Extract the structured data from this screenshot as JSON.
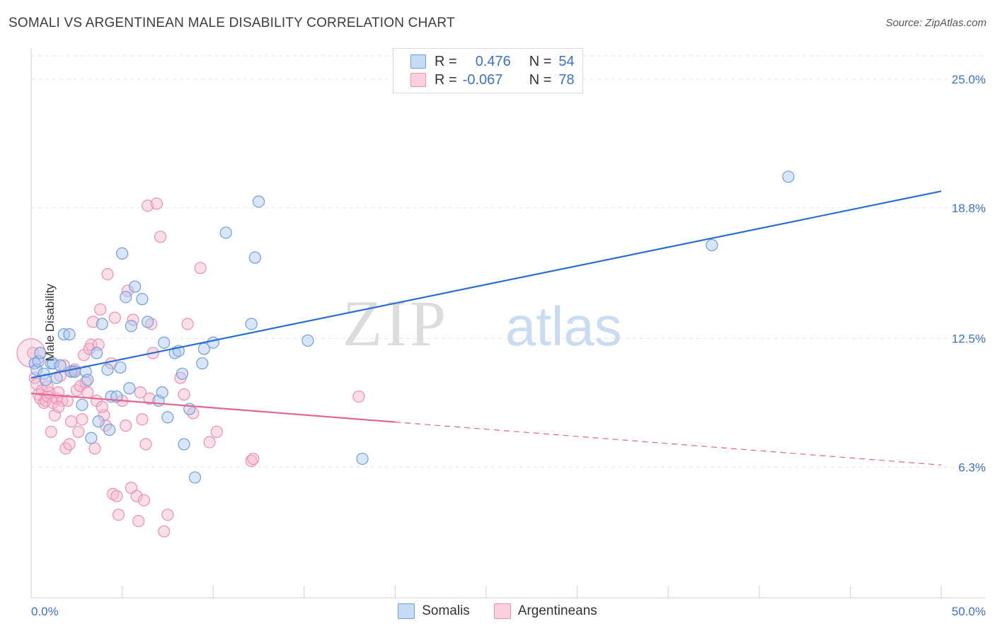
{
  "header": {
    "title": "SOMALI VS ARGENTINEAN MALE DISABILITY CORRELATION CHART",
    "source": "Source: ZipAtlas.com"
  },
  "legend": {
    "somalis": {
      "r_label": "R =",
      "r_value": "0.476",
      "n_label": "N =",
      "n_value": "54"
    },
    "argentineans": {
      "r_label": "R =",
      "r_value": "-0.067",
      "n_label": "N =",
      "n_value": "78"
    }
  },
  "watermark": {
    "part1": "ZIP",
    "part2": "atlas"
  },
  "colors": {
    "somali_fill": "#aac8f0",
    "somali_stroke": "#6f9ee0",
    "somali_line": "#2a6fd0",
    "arg_fill": "#f7b8cb",
    "arg_stroke": "#ee8fae",
    "arg_line": "#e2668f",
    "tick_label": "#3a72cc",
    "grid": "#e6e6e6"
  },
  "chart_data": {
    "type": "scatter",
    "title": "SOMALI VS ARGENTINEAN MALE DISABILITY CORRELATION CHART",
    "xlabel": "",
    "ylabel": "Male Disability",
    "xlim": [
      0,
      50
    ],
    "ylim": [
      0,
      26.5
    ],
    "x_tick_labels": [
      "0.0%",
      "50.0%"
    ],
    "y_ticks": [
      6.3,
      12.5,
      18.8,
      25.0
    ],
    "y_tick_labels": [
      "6.3%",
      "12.5%",
      "18.8%",
      "25.0%"
    ],
    "grid": true,
    "legend_position": "top-center",
    "series": [
      {
        "name": "Somalis",
        "r": 0.476,
        "n": 54,
        "trend": {
          "x": [
            0,
            50
          ],
          "y": [
            10.6,
            19.6
          ],
          "dashed_from": null
        },
        "points": [
          [
            0.2,
            11.3
          ],
          [
            0.3,
            11.0
          ],
          [
            0.4,
            11.4
          ],
          [
            0.5,
            11.8
          ],
          [
            0.7,
            10.8
          ],
          [
            0.8,
            10.5
          ],
          [
            1.1,
            11.3
          ],
          [
            1.2,
            11.3
          ],
          [
            1.4,
            10.6
          ],
          [
            1.6,
            11.2
          ],
          [
            1.8,
            12.7
          ],
          [
            2.1,
            12.7
          ],
          [
            2.2,
            10.9
          ],
          [
            2.4,
            10.9
          ],
          [
            2.8,
            9.3
          ],
          [
            3.0,
            10.9
          ],
          [
            3.1,
            10.5
          ],
          [
            3.3,
            7.7
          ],
          [
            3.6,
            11.8
          ],
          [
            3.7,
            8.5
          ],
          [
            3.9,
            13.2
          ],
          [
            4.2,
            11.0
          ],
          [
            4.3,
            8.1
          ],
          [
            4.4,
            9.7
          ],
          [
            4.7,
            9.7
          ],
          [
            4.9,
            11.1
          ],
          [
            5.0,
            16.6
          ],
          [
            5.2,
            14.5
          ],
          [
            5.4,
            10.1
          ],
          [
            5.5,
            13.1
          ],
          [
            5.7,
            15.0
          ],
          [
            6.1,
            14.4
          ],
          [
            6.4,
            13.3
          ],
          [
            7.0,
            9.5
          ],
          [
            7.2,
            9.9
          ],
          [
            7.3,
            12.3
          ],
          [
            7.5,
            8.7
          ],
          [
            7.9,
            11.8
          ],
          [
            8.1,
            11.9
          ],
          [
            8.3,
            10.8
          ],
          [
            8.4,
            7.4
          ],
          [
            8.7,
            9.1
          ],
          [
            9.0,
            5.8
          ],
          [
            9.4,
            11.3
          ],
          [
            9.5,
            12.0
          ],
          [
            10.0,
            12.3
          ],
          [
            10.7,
            17.6
          ],
          [
            12.1,
            13.2
          ],
          [
            12.3,
            16.4
          ],
          [
            12.5,
            19.1
          ],
          [
            15.2,
            12.4
          ],
          [
            18.2,
            6.7
          ],
          [
            37.4,
            17.0
          ],
          [
            41.6,
            20.3
          ]
        ]
      },
      {
        "name": "Argentineans",
        "r": -0.067,
        "n": 78,
        "trend": {
          "x": [
            0,
            50
          ],
          "y": [
            9.85,
            6.4
          ],
          "dashed_from": 20
        },
        "points": [
          [
            0.1,
            11.8
          ],
          [
            0.2,
            10.6
          ],
          [
            0.3,
            10.3
          ],
          [
            0.4,
            9.8
          ],
          [
            0.5,
            9.6
          ],
          [
            0.6,
            10.0
          ],
          [
            0.7,
            9.4
          ],
          [
            0.8,
            9.5
          ],
          [
            0.9,
            9.7
          ],
          [
            1.0,
            9.9
          ],
          [
            1.1,
            8.0
          ],
          [
            1.2,
            9.4
          ],
          [
            1.3,
            8.8
          ],
          [
            1.4,
            9.6
          ],
          [
            1.5,
            9.9
          ],
          [
            1.6,
            10.7
          ],
          [
            1.7,
            9.5
          ],
          [
            1.8,
            11.2
          ],
          [
            1.9,
            7.2
          ],
          [
            2.0,
            9.5
          ],
          [
            2.1,
            7.4
          ],
          [
            2.2,
            8.5
          ],
          [
            2.3,
            10.9
          ],
          [
            2.5,
            10.0
          ],
          [
            2.6,
            8.0
          ],
          [
            2.7,
            10.2
          ],
          [
            2.8,
            8.6
          ],
          [
            2.9,
            11.7
          ],
          [
            3.0,
            10.4
          ],
          [
            3.1,
            9.9
          ],
          [
            3.2,
            12.0
          ],
          [
            3.3,
            12.2
          ],
          [
            3.4,
            13.3
          ],
          [
            3.5,
            7.2
          ],
          [
            3.6,
            9.5
          ],
          [
            3.7,
            12.2
          ],
          [
            3.8,
            13.9
          ],
          [
            4.0,
            8.8
          ],
          [
            4.1,
            8.3
          ],
          [
            4.2,
            15.6
          ],
          [
            4.4,
            11.3
          ],
          [
            4.5,
            5.0
          ],
          [
            4.6,
            13.5
          ],
          [
            4.7,
            4.9
          ],
          [
            4.8,
            4.0
          ],
          [
            5.0,
            9.5
          ],
          [
            5.2,
            8.3
          ],
          [
            5.3,
            14.8
          ],
          [
            5.5,
            5.3
          ],
          [
            5.6,
            13.4
          ],
          [
            5.8,
            4.9
          ],
          [
            6.0,
            9.9
          ],
          [
            6.1,
            8.6
          ],
          [
            6.2,
            4.7
          ],
          [
            6.3,
            7.4
          ],
          [
            6.4,
            18.9
          ],
          [
            6.5,
            9.6
          ],
          [
            6.6,
            13.2
          ],
          [
            6.7,
            11.8
          ],
          [
            6.9,
            19.0
          ],
          [
            7.1,
            17.4
          ],
          [
            7.3,
            3.2
          ],
          [
            7.5,
            4.0
          ],
          [
            8.2,
            10.6
          ],
          [
            8.4,
            9.8
          ],
          [
            8.6,
            13.2
          ],
          [
            8.9,
            8.9
          ],
          [
            9.3,
            15.9
          ],
          [
            9.8,
            7.5
          ],
          [
            10.2,
            8.0
          ],
          [
            12.1,
            6.6
          ],
          [
            12.2,
            6.7
          ],
          [
            18.0,
            9.7
          ],
          [
            1.5,
            9.2
          ],
          [
            2.4,
            11.0
          ],
          [
            0.9,
            10.2
          ],
          [
            5.9,
            3.7
          ],
          [
            3.9,
            9.2
          ]
        ]
      }
    ]
  },
  "bottom_legend": {
    "somalis": "Somalis",
    "argentineans": "Argentineans"
  }
}
